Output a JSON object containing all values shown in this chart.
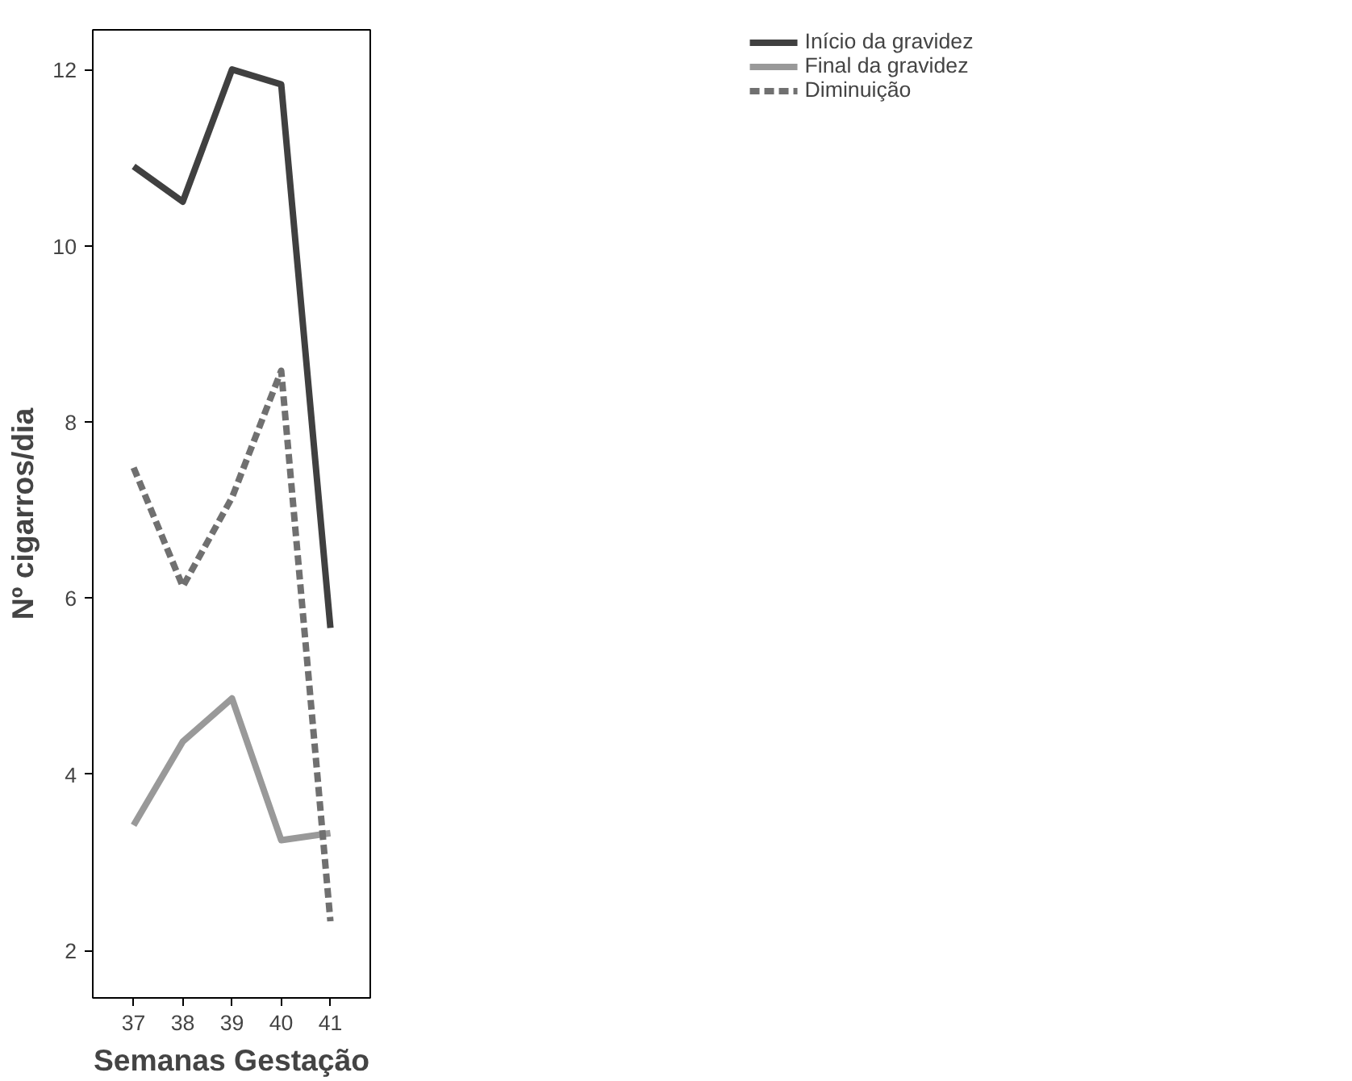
{
  "chart_data": {
    "type": "line",
    "xlabel": "Semanas Gestação",
    "ylabel": "Nº cigarros/dia",
    "x": [
      37,
      38,
      39,
      40,
      41
    ],
    "series": [
      {
        "name": "Início da gravidez",
        "color": "#404040",
        "values": [
          10.9,
          10.5,
          12.0,
          11.83,
          5.66
        ],
        "line_style": "solid"
      },
      {
        "name": "Final da gravidez",
        "color": "#999999",
        "values": [
          3.42,
          4.37,
          4.86,
          3.25,
          3.33
        ],
        "line_style": "solid"
      },
      {
        "name": "Diminuição",
        "color": "#707070",
        "values": [
          7.48,
          6.13,
          7.14,
          8.58,
          2.33
        ],
        "line_style": "dashed"
      }
    ],
    "xlim": [
      36.17,
      41.81
    ],
    "ylim": [
      1.46,
      12.45
    ],
    "xticks": [
      37,
      38,
      39,
      40,
      41
    ],
    "yticks": [
      2,
      4,
      6,
      8,
      10,
      12
    ],
    "grid": false,
    "legend": "top right",
    "marker": "none"
  }
}
